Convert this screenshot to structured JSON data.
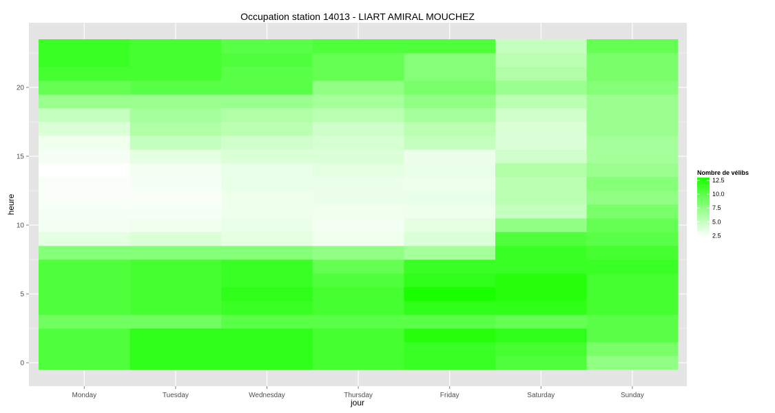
{
  "chart_data": {
    "type": "heatmap",
    "title": "Occupation station 14013 - LIART AMIRAL MOUCHEZ",
    "xlabel": "jour",
    "ylabel": "heure",
    "x_categories": [
      "Monday",
      "Tuesday",
      "Wednesday",
      "Thursday",
      "Friday",
      "Saturday",
      "Sunday"
    ],
    "y_values": [
      0,
      1,
      2,
      3,
      4,
      5,
      6,
      7,
      8,
      9,
      10,
      11,
      12,
      13,
      14,
      15,
      16,
      17,
      18,
      19,
      20,
      21,
      22,
      23
    ],
    "y_ticks": [
      0,
      5,
      10,
      15,
      20
    ],
    "values_by_day": [
      [
        10.5,
        10.5,
        10.5,
        9.0,
        10.5,
        10.5,
        10.5,
        10.5,
        8.0,
        3.5,
        2.8,
        2.7,
        2.6,
        2.6,
        2.3,
        2.7,
        3.0,
        4.0,
        5.0,
        7.0,
        9.5,
        11.0,
        11.5,
        11.5
      ],
      [
        12.0,
        12.0,
        12.0,
        9.0,
        11.0,
        11.0,
        11.0,
        11.0,
        8.0,
        4.0,
        3.0,
        2.7,
        2.6,
        2.7,
        2.9,
        3.5,
        5.0,
        6.0,
        6.5,
        7.0,
        10.0,
        11.0,
        11.0,
        11.0
      ],
      [
        12.0,
        12.0,
        12.0,
        10.0,
        11.5,
        12.0,
        11.5,
        11.5,
        8.0,
        3.5,
        3.3,
        3.1,
        3.1,
        3.3,
        3.3,
        4.0,
        4.5,
        5.5,
        6.0,
        7.0,
        10.0,
        10.0,
        10.5,
        10.0
      ],
      [
        11.0,
        11.0,
        11.0,
        10.0,
        11.0,
        11.0,
        10.5,
        9.5,
        7.5,
        3.0,
        2.8,
        3.0,
        3.2,
        3.2,
        3.5,
        4.0,
        4.2,
        4.6,
        5.5,
        6.5,
        7.5,
        9.5,
        9.5,
        10.5
      ],
      [
        11.5,
        11.5,
        12.5,
        10.0,
        12.0,
        13.0,
        12.0,
        11.5,
        6.5,
        4.0,
        3.5,
        3.1,
        3.3,
        3.1,
        3.3,
        3.2,
        5.0,
        5.5,
        6.5,
        7.5,
        8.5,
        8.0,
        8.0,
        10.5
      ],
      [
        10.5,
        11.0,
        12.0,
        9.5,
        12.0,
        12.5,
        12.5,
        11.5,
        11.5,
        10.5,
        7.5,
        5.0,
        5.5,
        5.5,
        6.0,
        4.5,
        4.0,
        4.0,
        4.5,
        5.5,
        7.0,
        6.0,
        5.5,
        5.0
      ],
      [
        7.5,
        8.5,
        10.0,
        10.0,
        11.0,
        11.0,
        11.0,
        11.5,
        11.0,
        10.0,
        9.5,
        8.5,
        7.5,
        8.0,
        7.0,
        6.5,
        6.5,
        7.0,
        7.0,
        7.0,
        8.0,
        8.5,
        8.5,
        9.5
      ]
    ],
    "color_scale": {
      "low_color": "#ffffff",
      "high_color": "#1aff00",
      "min": 2.3,
      "max": 13.0
    },
    "legend": {
      "title": "Nombre de vélibs",
      "breaks": [
        "12.5",
        "10.0",
        "7.5",
        "5.0",
        "2.5"
      ],
      "break_values": [
        12.5,
        10.0,
        7.5,
        5.0,
        2.5
      ],
      "position": "right"
    },
    "grid": true,
    "panel_background": "#e5e5e5",
    "grid_color": "#ffffff"
  }
}
